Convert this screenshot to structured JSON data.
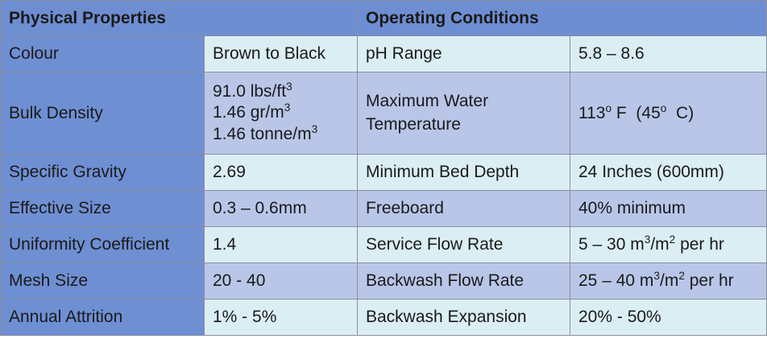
{
  "headers": {
    "physical": "Physical Properties",
    "operating": "Operating Conditions"
  },
  "rows": [
    {
      "label": "Colour",
      "value": "Brown to Black",
      "op_label": "pH Range",
      "op_value": "5.8 – 8.6"
    },
    {
      "label": "Bulk Density",
      "value_lines": [
        {
          "text": "91.0 lbs/ft",
          "sup": "3"
        },
        {
          "text": "1.46 gr/m",
          "sup": "3"
        },
        {
          "text": "1.46 tonne/m",
          "sup": "3"
        }
      ],
      "op_label": "Maximum Water Temperature",
      "op_value": {
        "pre": "113",
        "sup1": "o",
        "mid": " F  (45",
        "sup2": "o",
        "post": "  C)"
      }
    },
    {
      "label": "Specific Gravity",
      "value": "2.69",
      "op_label": "Minimum Bed Depth",
      "op_value": "24 Inches (600mm)"
    },
    {
      "label": "Effective Size",
      "value": "0.3 – 0.6mm",
      "op_label": "Freeboard",
      "op_value": "40% minimum"
    },
    {
      "label": "Uniformity Coefficient",
      "value": "1.4",
      "op_label": "Service Flow Rate",
      "op_value": {
        "pre": "5 – 30 m",
        "sup1": "3",
        "mid": "/m",
        "sup2": "2",
        "post": " per hr"
      }
    },
    {
      "label": "Mesh Size",
      "value": "20 - 40",
      "op_label": "Backwash Flow Rate",
      "op_value": {
        "pre": "25 – 40 m",
        "sup1": "3",
        "mid": "/m",
        "sup2": "2",
        "post": " per hr"
      }
    },
    {
      "label": "Annual Attrition",
      "value": "1% - 5%",
      "op_label": "Backwash Expansion",
      "op_value": "20% - 50%"
    }
  ]
}
